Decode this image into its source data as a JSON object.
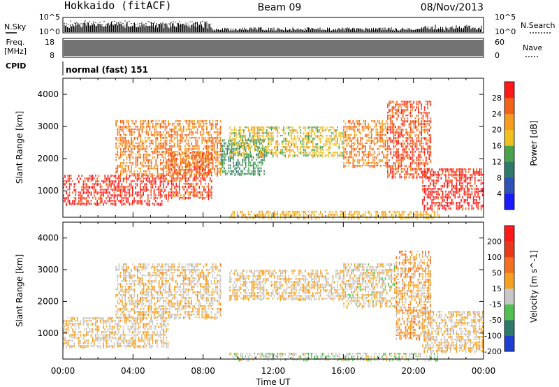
{
  "header": {
    "station": "Hokkaido (fitACF)",
    "beam": "Beam 09",
    "date": "08/Nov/2013"
  },
  "top_panels": {
    "nsky_label": "N.Sky",
    "nsearch_label": "N.Search",
    "noise_ticks_left": [
      "10^5",
      "10^0"
    ],
    "noise_ticks_right": [
      "10^5",
      "10^0"
    ],
    "freq_label_line1": "Freq.",
    "freq_label_line2": "[MHz]",
    "freq_ticks": [
      "18",
      "8"
    ],
    "nave_label": "Nave",
    "nave_ticks": [
      "60",
      "0"
    ],
    "cpid_label": "CPID",
    "cpid_text": "normal (fast) 151"
  },
  "chart_data": [
    {
      "type": "heatmap",
      "title": "",
      "xlabel": "",
      "ylabel": "Slant Range [km]",
      "x_tick_labels": [
        "00:00",
        "04:00",
        "08:00",
        "12:00",
        "16:00",
        "20:00",
        "00:00"
      ],
      "xlim_hours": [
        0,
        24
      ],
      "ylim": [
        180,
        4500
      ],
      "y_ticks": [
        1000,
        2000,
        3000,
        4000
      ],
      "colorbar": {
        "label": "Power [dB]",
        "range": [
          0,
          32
        ],
        "tick_labels": [
          "4",
          "8",
          "12",
          "16",
          "20",
          "24",
          "28"
        ],
        "colors": [
          "#1a1aff",
          "#2e52b8",
          "#2f7a6a",
          "#4aa24a",
          "#f0c020",
          "#f59c20",
          "#f2621a",
          "#ff1a1a"
        ]
      },
      "regions": [
        {
          "t0": 0.0,
          "t1": 6.0,
          "r0": 550,
          "r1": 1500,
          "value": 30
        },
        {
          "t0": 6.0,
          "t1": 8.5,
          "r0": 800,
          "r1": 2200,
          "value": 27
        },
        {
          "t0": 3.0,
          "t1": 9.0,
          "r0": 1500,
          "r1": 3200,
          "value": 24
        },
        {
          "t0": 9.0,
          "t1": 11.5,
          "r0": 1500,
          "r1": 2600,
          "value": 12
        },
        {
          "t0": 9.5,
          "t1": 16.0,
          "r0": 2100,
          "r1": 3000,
          "value": 18
        },
        {
          "t0": 16.0,
          "t1": 18.5,
          "r0": 1800,
          "r1": 3200,
          "value": 24
        },
        {
          "t0": 18.5,
          "t1": 21.0,
          "r0": 1400,
          "r1": 3800,
          "value": 27
        },
        {
          "t0": 20.5,
          "t1": 24.0,
          "r0": 450,
          "r1": 1700,
          "value": 30
        },
        {
          "t0": 9.5,
          "t1": 21.5,
          "r0": 190,
          "r1": 380,
          "value": 20
        }
      ]
    },
    {
      "type": "heatmap",
      "title": "",
      "xlabel": "Time UT",
      "ylabel": "Slant Range [km]",
      "x_tick_labels": [
        "00:00",
        "04:00",
        "08:00",
        "12:00",
        "16:00",
        "20:00",
        "00:00"
      ],
      "xlim_hours": [
        0,
        24
      ],
      "ylim": [
        180,
        4500
      ],
      "y_ticks": [
        1000,
        2000,
        3000,
        4000
      ],
      "colorbar": {
        "label": "Velocity [m s^-1]",
        "range": [
          -250,
          250
        ],
        "tick_labels": [
          "200",
          "100",
          "50",
          "15",
          "-15",
          "-50",
          "-100",
          "-200"
        ],
        "colors": [
          "#1f3fd0",
          "#2e7a6a",
          "#4fc04f",
          "#c8c8c8",
          "#f5a020",
          "#f27020",
          "#e83a1a",
          "#ff1a1a"
        ]
      },
      "regions": [
        {
          "t0": 0.0,
          "t1": 6.0,
          "r0": 550,
          "r1": 1500,
          "value": 0
        },
        {
          "t0": 3.0,
          "t1": 9.0,
          "r0": 1500,
          "r1": 3200,
          "value": 5
        },
        {
          "t0": 9.5,
          "t1": 16.0,
          "r0": 2100,
          "r1": 3000,
          "value": 0
        },
        {
          "t0": 16.0,
          "t1": 19.0,
          "r0": 1800,
          "r1": 3200,
          "value": -10
        },
        {
          "t0": 19.0,
          "t1": 21.0,
          "r0": 800,
          "r1": 3600,
          "value": 40
        },
        {
          "t0": 20.5,
          "t1": 24.0,
          "r0": 450,
          "r1": 1700,
          "value": 0
        },
        {
          "t0": 9.5,
          "t1": 21.5,
          "r0": 190,
          "r1": 380,
          "value": -40
        }
      ]
    }
  ]
}
